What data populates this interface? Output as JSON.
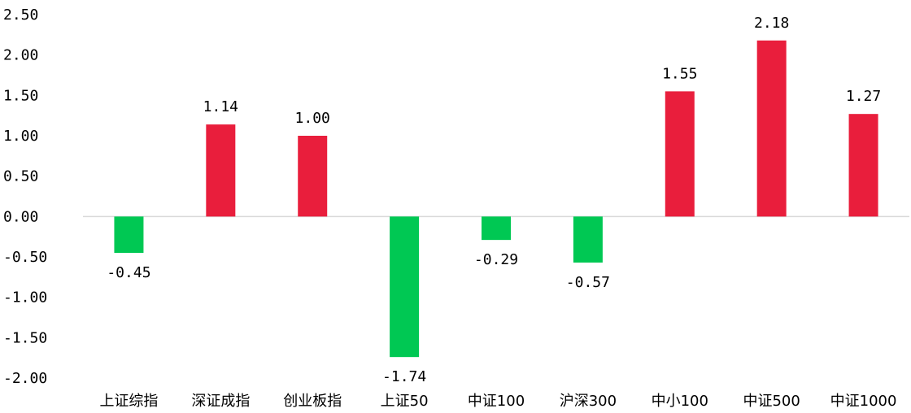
{
  "colors": {
    "positive": "#E91E3C",
    "negative": "#00C853",
    "axis": "#D9D9D9"
  },
  "chart_data": {
    "type": "bar",
    "title": "",
    "xlabel": "",
    "ylabel": "",
    "categories": [
      "上证综指",
      "深证成指",
      "创业板指",
      "上证50",
      "中证100",
      "沪深300",
      "中小100",
      "中证500",
      "中证1000"
    ],
    "values": [
      -0.45,
      1.14,
      1.0,
      -1.74,
      -0.29,
      -0.57,
      1.55,
      2.18,
      1.27
    ],
    "data_labels": [
      "-0.45",
      "1.14",
      "1.00",
      "-1.74",
      "-0.29",
      "-0.57",
      "1.55",
      "2.18",
      "1.27"
    ],
    "ylim": [
      -2.0,
      2.5
    ],
    "yticks": [
      2.5,
      2.0,
      1.5,
      1.0,
      0.5,
      0.0,
      -0.5,
      -1.0,
      -1.5,
      -2.0
    ],
    "ytick_labels": [
      "2.50",
      "2.00",
      "1.50",
      "1.00",
      "0.50",
      "0.00",
      "-0.50",
      "-1.00",
      "-1.50",
      "-2.00"
    ],
    "grid": false,
    "legend": "none"
  }
}
